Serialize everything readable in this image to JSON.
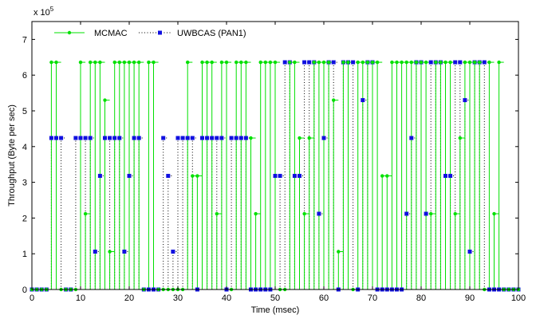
{
  "chart_data": {
    "type": "scatter",
    "style": "stem",
    "xlabel": "Time (msec)",
    "ylabel": "Throughput (Byte per sec)",
    "y_exponent_label": "x 10",
    "y_exponent_power": "5",
    "xlim": [
      0,
      100
    ],
    "ylim": [
      0,
      750000
    ],
    "x_ticks": [
      0,
      10,
      20,
      30,
      40,
      50,
      60,
      70,
      80,
      90,
      100
    ],
    "y_ticks": [
      0,
      100000,
      200000,
      300000,
      400000,
      500000,
      600000,
      700000
    ],
    "y_tick_labels": [
      "0",
      "1",
      "2",
      "3",
      "4",
      "5",
      "6",
      "7"
    ],
    "grid": false,
    "legend_position": "top-left",
    "series": [
      {
        "name": "MCMAC",
        "color": "#00e000",
        "line": "solid",
        "marker": "circle",
        "points": [
          [
            0,
            0
          ],
          [
            1,
            0
          ],
          [
            2,
            0
          ],
          [
            3,
            0
          ],
          [
            4,
            636000
          ],
          [
            5,
            636000
          ],
          [
            6,
            0
          ],
          [
            7,
            0
          ],
          [
            8,
            0
          ],
          [
            9,
            0
          ],
          [
            10,
            636000
          ],
          [
            11,
            212000
          ],
          [
            12,
            636000
          ],
          [
            13,
            636000
          ],
          [
            14,
            636000
          ],
          [
            15,
            530000
          ],
          [
            16,
            106000
          ],
          [
            17,
            636000
          ],
          [
            18,
            636000
          ],
          [
            19,
            636000
          ],
          [
            20,
            636000
          ],
          [
            21,
            636000
          ],
          [
            22,
            636000
          ],
          [
            23,
            0
          ],
          [
            24,
            636000
          ],
          [
            25,
            636000
          ],
          [
            26,
            0
          ],
          [
            27,
            0
          ],
          [
            28,
            0
          ],
          [
            29,
            0
          ],
          [
            30,
            0
          ],
          [
            31,
            0
          ],
          [
            32,
            636000
          ],
          [
            33,
            318000
          ],
          [
            34,
            318000
          ],
          [
            35,
            636000
          ],
          [
            36,
            636000
          ],
          [
            37,
            636000
          ],
          [
            38,
            212000
          ],
          [
            39,
            636000
          ],
          [
            40,
            636000
          ],
          [
            41,
            0
          ],
          [
            42,
            636000
          ],
          [
            43,
            636000
          ],
          [
            44,
            636000
          ],
          [
            45,
            424000
          ],
          [
            46,
            212000
          ],
          [
            47,
            636000
          ],
          [
            48,
            636000
          ],
          [
            49,
            636000
          ],
          [
            50,
            636000
          ],
          [
            51,
            0
          ],
          [
            52,
            0
          ],
          [
            53,
            636000
          ],
          [
            54,
            636000
          ],
          [
            55,
            424000
          ],
          [
            56,
            212000
          ],
          [
            57,
            424000
          ],
          [
            58,
            636000
          ],
          [
            59,
            636000
          ],
          [
            60,
            636000
          ],
          [
            61,
            636000
          ],
          [
            62,
            530000
          ],
          [
            63,
            106000
          ],
          [
            64,
            636000
          ],
          [
            65,
            636000
          ],
          [
            66,
            0
          ],
          [
            67,
            636000
          ],
          [
            68,
            636000
          ],
          [
            69,
            636000
          ],
          [
            70,
            636000
          ],
          [
            71,
            636000
          ],
          [
            72,
            318000
          ],
          [
            73,
            318000
          ],
          [
            74,
            636000
          ],
          [
            75,
            636000
          ],
          [
            76,
            636000
          ],
          [
            77,
            636000
          ],
          [
            78,
            636000
          ],
          [
            79,
            636000
          ],
          [
            80,
            636000
          ],
          [
            81,
            636000
          ],
          [
            82,
            212000
          ],
          [
            83,
            636000
          ],
          [
            84,
            636000
          ],
          [
            85,
            636000
          ],
          [
            86,
            636000
          ],
          [
            87,
            212000
          ],
          [
            88,
            424000
          ],
          [
            89,
            636000
          ],
          [
            90,
            636000
          ],
          [
            91,
            636000
          ],
          [
            92,
            636000
          ],
          [
            93,
            0
          ],
          [
            94,
            636000
          ],
          [
            95,
            212000
          ],
          [
            96,
            636000
          ],
          [
            97,
            0
          ],
          [
            98,
            0
          ],
          [
            99,
            0
          ],
          [
            100,
            0
          ]
        ]
      },
      {
        "name": "UWBCAS (PAN1)",
        "color": "#0000ff",
        "line": "dotted",
        "marker": "square",
        "points": [
          [
            0,
            0
          ],
          [
            1,
            0
          ],
          [
            2,
            0
          ],
          [
            3,
            0
          ],
          [
            4,
            424000
          ],
          [
            5,
            424000
          ],
          [
            6,
            424000
          ],
          [
            7,
            0
          ],
          [
            8,
            0
          ],
          [
            9,
            424000
          ],
          [
            10,
            424000
          ],
          [
            11,
            424000
          ],
          [
            12,
            424000
          ],
          [
            13,
            106000
          ],
          [
            14,
            318000
          ],
          [
            15,
            424000
          ],
          [
            16,
            424000
          ],
          [
            17,
            424000
          ],
          [
            18,
            424000
          ],
          [
            19,
            106000
          ],
          [
            20,
            318000
          ],
          [
            21,
            424000
          ],
          [
            22,
            424000
          ],
          [
            23,
            0
          ],
          [
            24,
            0
          ],
          [
            25,
            0
          ],
          [
            26,
            0
          ],
          [
            27,
            424000
          ],
          [
            28,
            318000
          ],
          [
            29,
            106000
          ],
          [
            30,
            424000
          ],
          [
            31,
            424000
          ],
          [
            32,
            424000
          ],
          [
            33,
            424000
          ],
          [
            34,
            0
          ],
          [
            35,
            424000
          ],
          [
            36,
            424000
          ],
          [
            37,
            424000
          ],
          [
            38,
            424000
          ],
          [
            39,
            424000
          ],
          [
            40,
            0
          ],
          [
            41,
            424000
          ],
          [
            42,
            424000
          ],
          [
            43,
            424000
          ],
          [
            44,
            424000
          ],
          [
            45,
            0
          ],
          [
            46,
            0
          ],
          [
            47,
            0
          ],
          [
            48,
            0
          ],
          [
            49,
            0
          ],
          [
            50,
            318000
          ],
          [
            51,
            318000
          ],
          [
            52,
            636000
          ],
          [
            53,
            636000
          ],
          [
            54,
            318000
          ],
          [
            55,
            318000
          ],
          [
            56,
            636000
          ],
          [
            57,
            636000
          ],
          [
            58,
            636000
          ],
          [
            59,
            212000
          ],
          [
            60,
            424000
          ],
          [
            61,
            636000
          ],
          [
            62,
            636000
          ],
          [
            63,
            0
          ],
          [
            64,
            636000
          ],
          [
            65,
            636000
          ],
          [
            66,
            636000
          ],
          [
            67,
            0
          ],
          [
            68,
            530000
          ],
          [
            69,
            636000
          ],
          [
            70,
            636000
          ],
          [
            71,
            0
          ],
          [
            72,
            0
          ],
          [
            73,
            0
          ],
          [
            74,
            0
          ],
          [
            75,
            0
          ],
          [
            76,
            0
          ],
          [
            77,
            212000
          ],
          [
            78,
            424000
          ],
          [
            79,
            636000
          ],
          [
            80,
            636000
          ],
          [
            81,
            212000
          ],
          [
            82,
            636000
          ],
          [
            83,
            636000
          ],
          [
            84,
            636000
          ],
          [
            85,
            318000
          ],
          [
            86,
            318000
          ],
          [
            87,
            636000
          ],
          [
            88,
            636000
          ],
          [
            89,
            530000
          ],
          [
            90,
            106000
          ],
          [
            91,
            636000
          ],
          [
            92,
            636000
          ],
          [
            93,
            636000
          ],
          [
            94,
            0
          ],
          [
            95,
            0
          ],
          [
            96,
            0
          ],
          [
            97,
            0
          ],
          [
            98,
            0
          ],
          [
            99,
            0
          ],
          [
            100,
            0
          ]
        ]
      }
    ]
  }
}
